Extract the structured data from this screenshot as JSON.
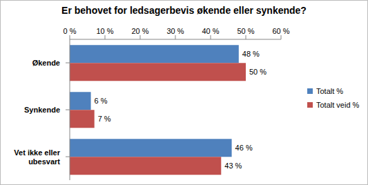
{
  "chart_data": {
    "type": "bar",
    "orientation": "horizontal",
    "title": "Er behovet for ledsagerbevis økende eller synkende?",
    "categories": [
      "Økende",
      "Synkende",
      "Vet ikke eller ubesvart"
    ],
    "series": [
      {
        "name": "Totalt %",
        "color": "#4f81bd",
        "values": [
          48,
          6,
          46
        ],
        "value_labels": [
          "48 %",
          "6 %",
          "46 %"
        ]
      },
      {
        "name": "Totalt veid %",
        "color": "#c0504d",
        "values": [
          50,
          7,
          43
        ],
        "value_labels": [
          "50 %",
          "7 %",
          "43 %"
        ]
      }
    ],
    "xlim": [
      0,
      60
    ],
    "xticks": [
      {
        "value": 0,
        "label": "0 %"
      },
      {
        "value": 10,
        "label": "10 %"
      },
      {
        "value": 20,
        "label": "20 %"
      },
      {
        "value": 30,
        "label": "30 %"
      },
      {
        "value": 40,
        "label": "40 %"
      },
      {
        "value": 50,
        "label": "50 %"
      },
      {
        "value": 60,
        "label": "60 %"
      }
    ],
    "data_labels": true,
    "grid": false,
    "legend": "right"
  }
}
